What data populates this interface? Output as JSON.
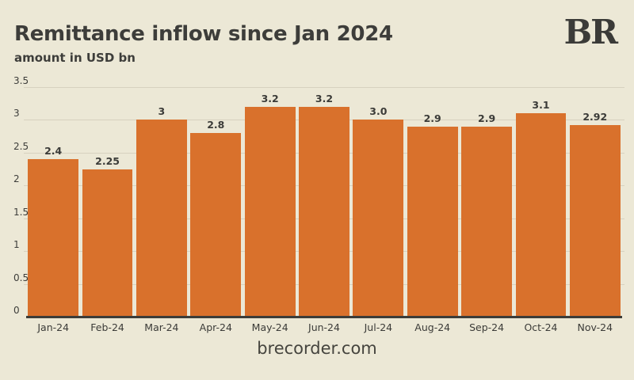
{
  "header": {
    "title": "Remittance inflow since Jan 2024",
    "subtitle": "amount in USD bn",
    "logo_text": "BR"
  },
  "footer": {
    "site": "brecorder.com"
  },
  "colors": {
    "background": "#ece8d6",
    "bar": "#d9712c",
    "text_dark": "#3d3d3a",
    "gridline": "#d7d1bf",
    "axis_line": "#3c3c39"
  },
  "chart_data": {
    "type": "bar",
    "title": "Remittance inflow since Jan 2024",
    "subtitle": "amount in USD bn",
    "xlabel": "",
    "ylabel": "amount in USD bn",
    "categories": [
      "Jan-24",
      "Feb-24",
      "Mar-24",
      "Apr-24",
      "May-24",
      "Jun-24",
      "Jul-24",
      "Aug-24",
      "Sep-24",
      "Oct-24",
      "Nov-24"
    ],
    "values": [
      2.4,
      2.25,
      3,
      2.8,
      3.2,
      3.2,
      3.0,
      2.9,
      2.9,
      3.1,
      2.92
    ],
    "value_labels": [
      "2.4",
      "2.25",
      "3",
      "2.8",
      "3.2",
      "3.2",
      "3.0",
      "2.9",
      "2.9",
      "3.1",
      "2.92"
    ],
    "ylim": [
      0,
      3.5
    ],
    "ytick_values": [
      0,
      0.5,
      1,
      1.5,
      2,
      2.5,
      3,
      3.5
    ],
    "ytick_labels": [
      "0",
      "0.5",
      "1",
      "1.5",
      "2",
      "2.5",
      "3",
      "3.5"
    ],
    "grid": "horizontal",
    "legend": "none",
    "bar_color": "#d9712c",
    "source_text": "brecorder.com"
  }
}
